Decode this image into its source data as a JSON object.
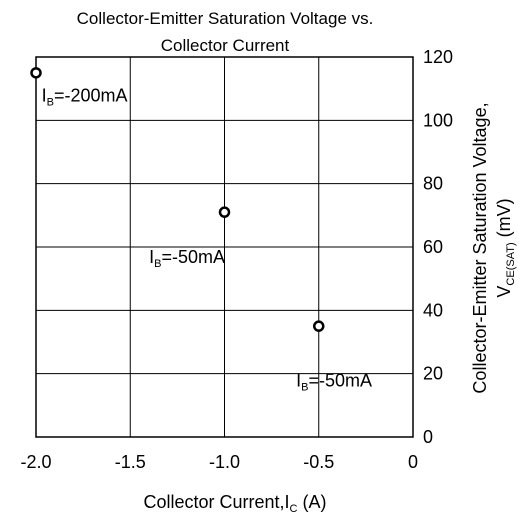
{
  "chart_data": {
    "type": "scatter",
    "title_line1": "Collector-Emitter Saturation Voltage vs.",
    "title_line2": "Collector Current",
    "xlabel": {
      "main": "Collector Current,I",
      "sub": "C",
      "unit": " (A)"
    },
    "ylabel_line1": "Collector-Emitter Saturation Voltage,",
    "ylabel_line2": {
      "main": "V",
      "sub": "CE(SAT)",
      "unit": " (mV)"
    },
    "xlim": [
      -2.0,
      0
    ],
    "ylim": [
      0,
      120
    ],
    "x_ticks": [
      {
        "value": -2.0,
        "label": "-2.0"
      },
      {
        "value": -1.5,
        "label": "-1.5"
      },
      {
        "value": -1.0,
        "label": "-1.0"
      },
      {
        "value": -0.5,
        "label": "-0.5"
      },
      {
        "value": 0,
        "label": "0"
      }
    ],
    "y_ticks": [
      {
        "value": 0,
        "label": "0"
      },
      {
        "value": 20,
        "label": "20"
      },
      {
        "value": 40,
        "label": "40"
      },
      {
        "value": 60,
        "label": "60"
      },
      {
        "value": 80,
        "label": "80"
      },
      {
        "value": 100,
        "label": "100"
      },
      {
        "value": 120,
        "label": "120"
      }
    ],
    "grid": true,
    "points": [
      {
        "x": -2.0,
        "y": 115
      },
      {
        "x": -1.0,
        "y": 71
      },
      {
        "x": -0.5,
        "y": 35
      }
    ],
    "annotations": [
      {
        "pre": "I",
        "sub": "B",
        "post": "=-200mA",
        "x": -1.97,
        "y": 106
      },
      {
        "pre": "I",
        "sub": "B",
        "post": "=-50mA",
        "x": -1.4,
        "y": 55
      },
      {
        "pre": "I",
        "sub": "B",
        "post": "=-50mA",
        "x": -0.62,
        "y": 16
      }
    ],
    "colors": {
      "axis": "#000000",
      "marker": "#000000",
      "background": "#ffffff"
    }
  }
}
